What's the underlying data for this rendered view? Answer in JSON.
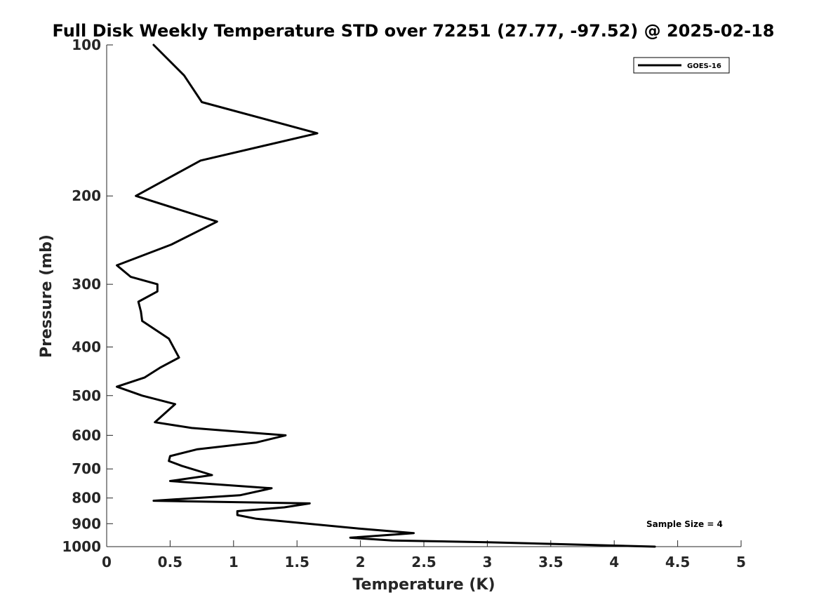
{
  "chart_data": {
    "type": "line",
    "title": "Full Disk Weekly Temperature STD over 72251 (27.77, -97.52) @ 2025-02-18",
    "xlabel": "Temperature (K)",
    "ylabel": "Pressure (mb)",
    "xlim": [
      0,
      5
    ],
    "ylim": [
      100,
      1000
    ],
    "y_scale": "log",
    "y_direction": "reversed",
    "x_ticks": [
      "0",
      "0.5",
      "1",
      "1.5",
      "2",
      "2.5",
      "3",
      "3.5",
      "4",
      "4.5",
      "5"
    ],
    "y_ticks": [
      "100",
      "200",
      "300",
      "400",
      "500",
      "600",
      "700",
      "800",
      "900",
      "1000"
    ],
    "grid": false,
    "legend_position": "top-right",
    "annotation": "Sample Size = 4",
    "series": [
      {
        "name": "GOES-16",
        "color": "#000000",
        "x": [
          0.37,
          0.61,
          0.75,
          1.66,
          0.74,
          0.23,
          0.87,
          0.51,
          0.08,
          0.19,
          0.4,
          0.4,
          0.25,
          0.27,
          0.28,
          0.49,
          0.57,
          0.42,
          0.3,
          0.08,
          0.28,
          0.54,
          0.38,
          0.67,
          1.41,
          1.18,
          0.71,
          0.5,
          0.49,
          0.59,
          0.83,
          0.5,
          1.3,
          1.05,
          0.37,
          1.6,
          1.4,
          1.03,
          1.03,
          1.18,
          1.98,
          2.42,
          1.92,
          2.25,
          3.0,
          4.32
        ],
        "y": [
          100,
          115,
          130,
          150,
          170,
          200,
          225,
          250,
          275,
          290,
          300,
          310,
          325,
          340,
          355,
          385,
          420,
          440,
          460,
          480,
          500,
          520,
          565,
          580,
          600,
          620,
          640,
          660,
          675,
          690,
          720,
          740,
          765,
          790,
          810,
          820,
          835,
          850,
          865,
          880,
          920,
          940,
          960,
          972,
          980,
          1000
        ]
      }
    ]
  }
}
